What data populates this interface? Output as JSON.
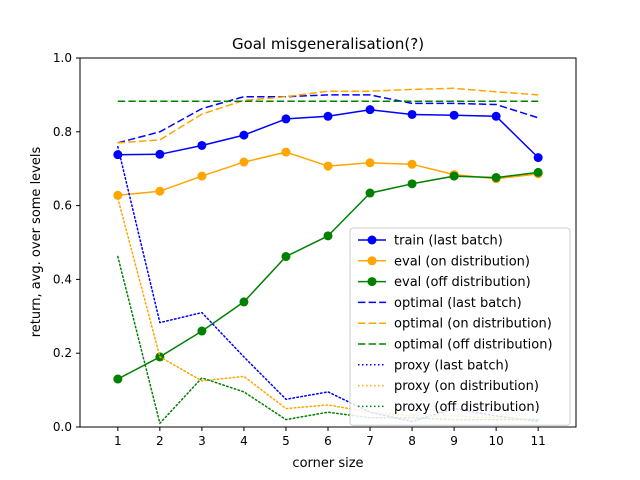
{
  "chart_data": {
    "type": "line",
    "title": "Goal misgeneralisation(?)",
    "xlabel": "corner size",
    "ylabel": "return, avg. over some levels",
    "x": [
      1,
      2,
      3,
      4,
      5,
      6,
      7,
      8,
      9,
      10,
      11
    ],
    "xticks": [
      "1",
      "2",
      "3",
      "4",
      "5",
      "6",
      "7",
      "8",
      "9",
      "10",
      "11"
    ],
    "xlim": [
      0.1,
      11.9
    ],
    "ylim": [
      0.0,
      1.0
    ],
    "yticks": [
      "0.0",
      "0.2",
      "0.4",
      "0.6",
      "0.8",
      "1.0"
    ],
    "grid": false,
    "legend_position": "lower-right",
    "series": [
      {
        "name": "train (last batch)",
        "color": "#0000ff",
        "style": "solid-marker",
        "values": [
          0.738,
          0.739,
          0.763,
          0.791,
          0.835,
          0.842,
          0.86,
          0.847,
          0.845,
          0.842,
          0.73
        ]
      },
      {
        "name": "eval (on distribution)",
        "color": "#ffa500",
        "style": "solid-marker",
        "values": [
          0.628,
          0.639,
          0.68,
          0.718,
          0.745,
          0.707,
          0.716,
          0.712,
          0.684,
          0.673,
          0.686
        ]
      },
      {
        "name": "eval (off distribution)",
        "color": "#008000",
        "style": "solid-marker",
        "values": [
          0.13,
          0.19,
          0.26,
          0.339,
          0.462,
          0.518,
          0.634,
          0.659,
          0.68,
          0.676,
          0.69
        ]
      },
      {
        "name": "optimal (last batch)",
        "color": "#0000ff",
        "style": "dashed",
        "values": [
          0.77,
          0.8,
          0.863,
          0.895,
          0.895,
          0.9,
          0.9,
          0.877,
          0.877,
          0.874,
          0.838
        ]
      },
      {
        "name": "optimal (on distribution)",
        "color": "#ffa500",
        "style": "dashed",
        "values": [
          0.77,
          0.778,
          0.848,
          0.885,
          0.895,
          0.91,
          0.91,
          0.915,
          0.918,
          0.908,
          0.9
        ]
      },
      {
        "name": "optimal (off distribution)",
        "color": "#008000",
        "style": "dashed",
        "values": [
          0.883,
          0.883,
          0.883,
          0.883,
          0.883,
          0.883,
          0.883,
          0.883,
          0.883,
          0.883,
          0.883
        ]
      },
      {
        "name": "proxy (last batch)",
        "color": "#0000ff",
        "style": "dotted",
        "values": [
          0.76,
          0.283,
          0.31,
          0.19,
          0.075,
          0.095,
          0.04,
          0.015,
          0.05,
          0.03,
          0.015
        ]
      },
      {
        "name": "proxy (on distribution)",
        "color": "#ffa500",
        "style": "dotted",
        "values": [
          0.62,
          0.19,
          0.125,
          0.137,
          0.05,
          0.06,
          0.04,
          0.03,
          0.03,
          0.025,
          0.02
        ]
      },
      {
        "name": "proxy (off distribution)",
        "color": "#008000",
        "style": "dotted",
        "values": [
          0.462,
          0.01,
          0.133,
          0.095,
          0.02,
          0.04,
          0.025,
          0.025,
          0.02,
          0.02,
          0.02
        ]
      }
    ]
  }
}
